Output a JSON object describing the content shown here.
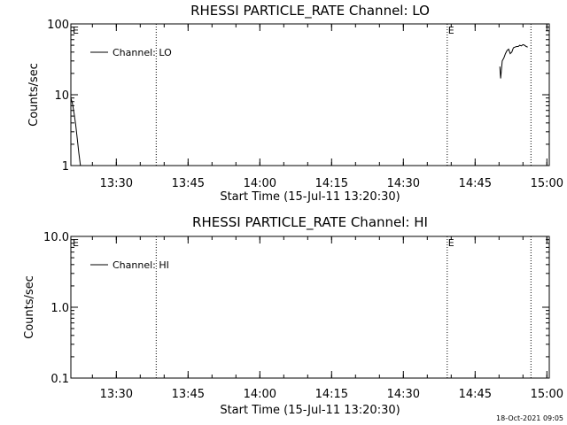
{
  "chart_data": [
    {
      "type": "line",
      "title": "RHESSI PARTICLE_RATE Channel: LO",
      "xlabel": "Start Time (15-Jul-11 13:20:30)",
      "ylabel": "Counts/sec",
      "yscale": "log",
      "ylim": [
        1,
        100
      ],
      "xlim": [
        "13:20:30",
        "15:00:30"
      ],
      "x_ticks": [
        "13:30",
        "13:45",
        "14:00",
        "14:15",
        "14:30",
        "14:45",
        "15:00"
      ],
      "y_ticks": [
        "1",
        "10",
        "100"
      ],
      "legend": "upper-left",
      "grid": false,
      "series": [
        {
          "name": "Channel: LO",
          "segments": [
            {
              "x": [
                "13:20:30",
                "13:20:50",
                "13:21:10",
                "13:21:30",
                "13:21:50",
                "13:22:10",
                "13:22:30"
              ],
              "y": [
                9.0,
                7.5,
                5.5,
                3.8,
                2.4,
                1.5,
                1.0
              ]
            },
            {
              "x": [
                "14:50:10",
                "14:50:20",
                "14:50:40",
                "14:51:00",
                "14:51:20",
                "14:51:40",
                "14:52:00",
                "14:52:20",
                "14:52:40",
                "14:53:00",
                "14:53:20",
                "14:53:40",
                "14:54:00",
                "14:54:20",
                "14:54:40",
                "14:55:00",
                "14:55:20",
                "14:55:40",
                "14:56:00"
              ],
              "y": [
                25,
                17,
                30,
                33,
                38,
                42,
                44,
                38,
                40,
                46,
                47,
                48,
                48,
                50,
                49,
                51,
                50,
                48,
                47
              ]
            }
          ]
        }
      ],
      "event_lines": [
        "13:38:20",
        "14:39:10",
        "14:56:40"
      ],
      "event_markers": [
        {
          "x": "13:20:30",
          "label": "E"
        },
        {
          "x": "14:39:10",
          "label": "E"
        }
      ]
    },
    {
      "type": "line",
      "title": "RHESSI PARTICLE_RATE Channel: HI",
      "xlabel": "Start Time (15-Jul-11 13:20:30)",
      "ylabel": "Counts/sec",
      "yscale": "log",
      "ylim": [
        0.1,
        10
      ],
      "xlim": [
        "13:20:30",
        "15:00:30"
      ],
      "x_ticks": [
        "13:30",
        "13:45",
        "14:00",
        "14:15",
        "14:30",
        "14:45",
        "15:00"
      ],
      "y_ticks": [
        "0.1",
        "1.0",
        "10.0"
      ],
      "legend": "upper-left",
      "grid": false,
      "series": [
        {
          "name": "Channel: HI",
          "segments": []
        }
      ],
      "event_lines": [
        "13:38:20",
        "14:39:10",
        "14:56:40"
      ],
      "event_markers": [
        {
          "x": "13:20:30",
          "label": "E"
        },
        {
          "x": "14:39:10",
          "label": "E"
        }
      ]
    }
  ],
  "footer": {
    "timestamp": "18-Oct-2021 09:05"
  }
}
